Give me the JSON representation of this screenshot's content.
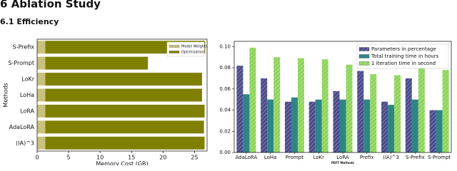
{
  "header": {
    "section": "6  Ablation Study",
    "subsection": "6.1  Efficiency"
  },
  "chart_data": [
    {
      "type": "bar",
      "orientation": "horizontal",
      "stacked": true,
      "categories": [
        "S-Prefix",
        "S-Prompt",
        "LoKr",
        "LoHa",
        "LoRA",
        "AdaLoRA",
        "(IA)^3"
      ],
      "series": [
        {
          "name": "Model Weights",
          "color": "#c8c27a",
          "values": [
            1.3,
            1.3,
            1.3,
            1.3,
            1.3,
            1.3,
            1.3
          ]
        },
        {
          "name": "Optimization",
          "color": "#7f7f00",
          "values": [
            25.4,
            16.3,
            24.9,
            24.9,
            25.3,
            25.2,
            25.3
          ]
        }
      ],
      "xlim": [
        0,
        27
      ],
      "xticks": [
        0,
        5,
        10,
        15,
        20,
        25
      ],
      "x_label": "Memory Cost (GB)",
      "y_label": "Methods",
      "legend": "upper right"
    },
    {
      "type": "bar",
      "orientation": "vertical",
      "stacked": false,
      "categories": [
        "AdaLoRA",
        "LoHa",
        "Prompt",
        "LoKr",
        "LoRA",
        "Prefix",
        "(IA)^3",
        "S-Prefix",
        "S-Prompt"
      ],
      "series": [
        {
          "name": "Parameters in percentage",
          "color": "#4a4a8c",
          "hatch": true,
          "values": [
            0.082,
            0.07,
            0.048,
            0.048,
            0.058,
            0.077,
            0.048,
            0.07,
            0.04
          ]
        },
        {
          "name": "Total training time in hours",
          "color": "#2f8585",
          "hatch": false,
          "values": [
            0.055,
            0.05,
            0.052,
            0.05,
            0.05,
            0.05,
            0.045,
            0.05,
            0.04
          ]
        },
        {
          "name": "1 iteration time in second",
          "color": "#8ed45a",
          "hatch": true,
          "values": [
            0.099,
            0.09,
            0.089,
            0.088,
            0.083,
            0.074,
            0.073,
            0.08,
            0.078
          ]
        }
      ],
      "ylim": [
        0,
        0.105
      ],
      "yticks": [
        {
          "value": 0,
          "label": "0.00"
        },
        {
          "value": 0.02,
          "label": "0.02"
        },
        {
          "value": 0.04,
          "label": "0.04"
        },
        {
          "value": 0.06,
          "label": "0.06"
        },
        {
          "value": 0.08,
          "label": "0.08"
        },
        {
          "value": 0.1,
          "label": "0.10"
        }
      ],
      "x_label": "PEFT Methods",
      "legend": "upper right"
    }
  ]
}
